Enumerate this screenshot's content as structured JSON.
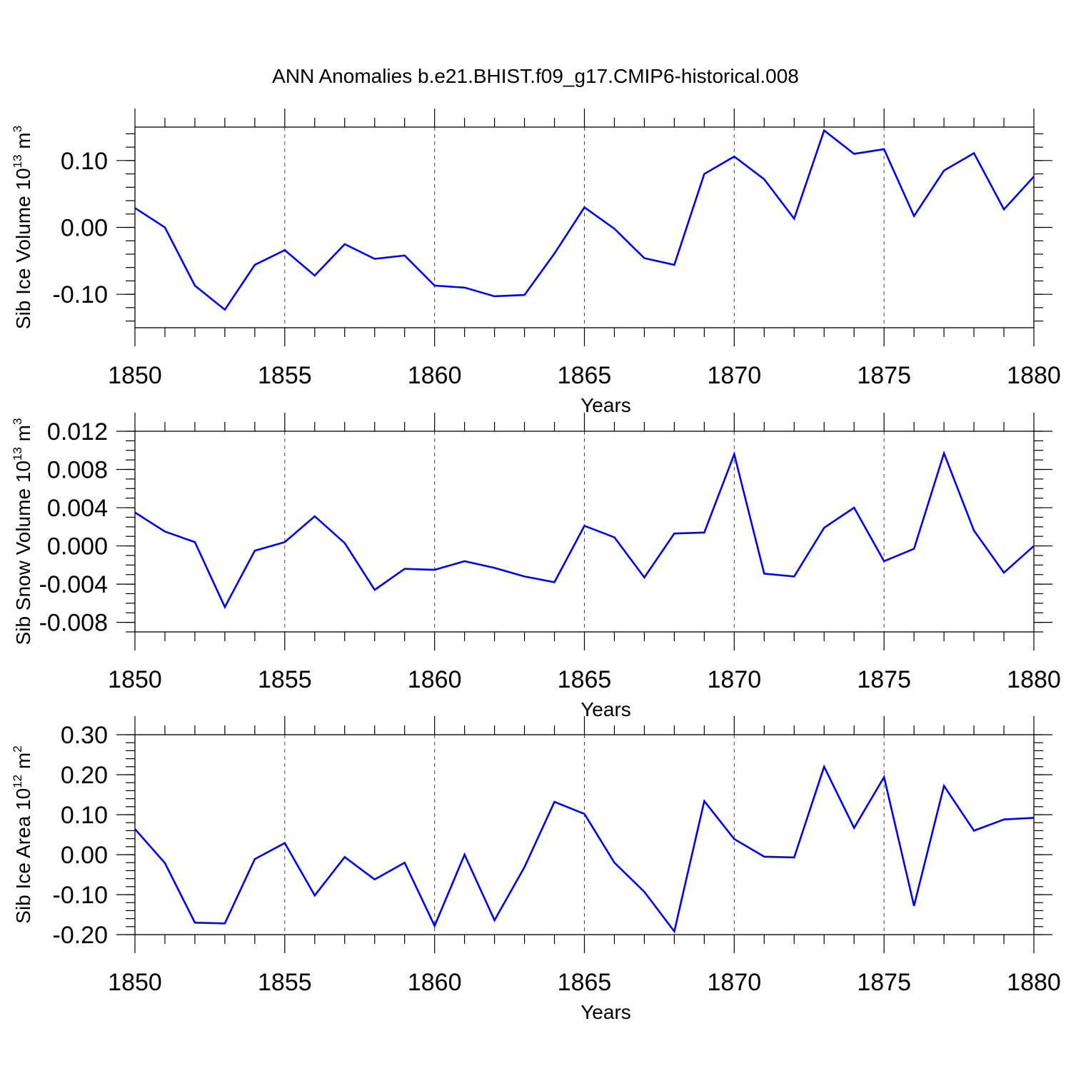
{
  "title": "ANN Anomalies b.e21.BHIST.f09_g17.CMIP6-historical.008",
  "colors": {
    "series": "#0000ff",
    "axis": "#000000",
    "grid": "#444444"
  },
  "chart_data": [
    {
      "type": "line",
      "ylabel_main": "Sib Ice Volume 10",
      "ylabel_exp": "13",
      "ylabel_unit": " m",
      "ylabel_unit_exp": "3",
      "xlabel": "Years",
      "xlim": [
        1850,
        1880
      ],
      "ylim": [
        -0.15,
        0.15
      ],
      "x_ticks": [
        "1850",
        "1855",
        "1860",
        "1865",
        "1870",
        "1875",
        "1880"
      ],
      "y_ticks": [
        -0.1,
        0.0,
        0.1
      ],
      "y_tick_labels": [
        "-0.10",
        "0.00",
        "0.10"
      ],
      "y_minor_step": 0.02,
      "grid_x": [
        1855,
        1860,
        1865,
        1870,
        1875
      ],
      "x": [
        1850,
        1851,
        1852,
        1853,
        1854,
        1855,
        1856,
        1857,
        1858,
        1859,
        1860,
        1861,
        1862,
        1863,
        1864,
        1865,
        1866,
        1867,
        1868,
        1869,
        1870,
        1871,
        1872,
        1873,
        1874,
        1875,
        1876,
        1877,
        1878,
        1879,
        1880
      ],
      "values": [
        0.029,
        0.0,
        -0.087,
        -0.123,
        -0.056,
        -0.034,
        -0.072,
        -0.025,
        -0.047,
        -0.042,
        -0.087,
        -0.09,
        -0.103,
        -0.101,
        -0.039,
        0.03,
        -0.002,
        -0.046,
        -0.056,
        0.08,
        0.106,
        0.072,
        0.013,
        0.145,
        0.11,
        0.117,
        0.017,
        0.085,
        0.111,
        0.027,
        0.076
      ]
    },
    {
      "type": "line",
      "ylabel_main": "Sib Snow Volume 10",
      "ylabel_exp": "13",
      "ylabel_unit": " m",
      "ylabel_unit_exp": "3",
      "xlabel": "Years",
      "xlim": [
        1850,
        1880
      ],
      "ylim": [
        -0.009,
        0.012
      ],
      "x_ticks": [
        "1850",
        "1855",
        "1860",
        "1865",
        "1870",
        "1875",
        "1880"
      ],
      "y_ticks": [
        -0.008,
        -0.004,
        0.0,
        0.004,
        0.008,
        0.012
      ],
      "y_tick_labels": [
        "-0.008",
        "-0.004",
        "0.000",
        "0.004",
        "0.008",
        "0.012"
      ],
      "y_minor_step": 0.001,
      "grid_x": [
        1855,
        1860,
        1865,
        1870,
        1875
      ],
      "x": [
        1850,
        1851,
        1852,
        1853,
        1854,
        1855,
        1856,
        1857,
        1858,
        1859,
        1860,
        1861,
        1862,
        1863,
        1864,
        1865,
        1866,
        1867,
        1868,
        1869,
        1870,
        1871,
        1872,
        1873,
        1874,
        1875,
        1876,
        1877,
        1878,
        1879,
        1880
      ],
      "values": [
        0.0035,
        0.0015,
        0.0004,
        -0.0064,
        -0.0005,
        0.0004,
        0.0031,
        0.0003,
        -0.0046,
        -0.0024,
        -0.0025,
        -0.0016,
        -0.0023,
        -0.0032,
        -0.0038,
        0.0021,
        0.0009,
        -0.0033,
        0.0013,
        0.0014,
        0.0096,
        -0.0029,
        -0.0032,
        0.0019,
        0.004,
        -0.0016,
        -0.0003,
        0.0097,
        0.0016,
        -0.0028,
        0.0
      ]
    },
    {
      "type": "line",
      "ylabel_main": "Sib Ice Area 10",
      "ylabel_exp": "12",
      "ylabel_unit": " m",
      "ylabel_unit_exp": "2",
      "xlabel": "Years",
      "xlim": [
        1850,
        1880
      ],
      "ylim": [
        -0.2,
        0.3
      ],
      "x_ticks": [
        "1850",
        "1855",
        "1860",
        "1865",
        "1870",
        "1875",
        "1880"
      ],
      "y_ticks": [
        -0.2,
        -0.1,
        0.0,
        0.1,
        0.2,
        0.3
      ],
      "y_tick_labels": [
        "-0.20",
        "-0.10",
        "0.00",
        "0.10",
        "0.20",
        "0.30"
      ],
      "y_minor_step": 0.02,
      "grid_x": [
        1855,
        1860,
        1865,
        1870,
        1875
      ],
      "x": [
        1850,
        1851,
        1852,
        1853,
        1854,
        1855,
        1856,
        1857,
        1858,
        1859,
        1860,
        1861,
        1862,
        1863,
        1864,
        1865,
        1866,
        1867,
        1868,
        1869,
        1870,
        1871,
        1872,
        1873,
        1874,
        1875,
        1876,
        1877,
        1878,
        1879,
        1880
      ],
      "values": [
        0.064,
        -0.021,
        -0.17,
        -0.172,
        -0.011,
        0.029,
        -0.102,
        -0.006,
        -0.062,
        -0.02,
        -0.178,
        0.0,
        -0.164,
        -0.031,
        0.132,
        0.102,
        -0.02,
        -0.093,
        -0.192,
        0.134,
        0.039,
        -0.005,
        -0.007,
        0.22,
        0.067,
        0.194,
        -0.128,
        0.172,
        0.06,
        0.088,
        0.092
      ]
    }
  ]
}
